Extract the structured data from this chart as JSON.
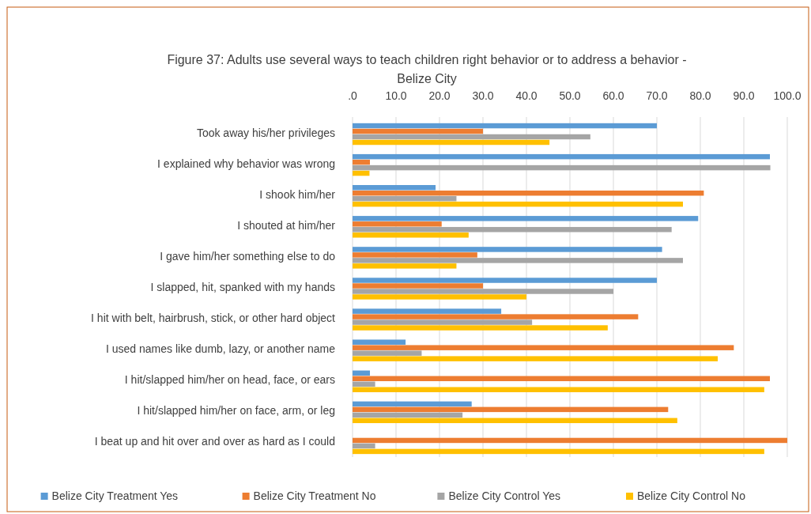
{
  "chart_data": {
    "type": "bar",
    "orientation": "horizontal",
    "title": "Figure 37: Adults use several ways to teach children right behavior or to address a behavior - Belize City",
    "categories": [
      "Took away his/her privileges",
      "I explained why behavior was wrong",
      "I shook him/her",
      "I shouted at him/her",
      "I gave him/her something else to do",
      "I slapped, hit, spanked with my hands",
      "I hit with belt, hairbrush, stick, or other hard object",
      "I used names like dumb, lazy, or another name",
      "I hit/slapped him/her on head, face, or ears",
      "I hit/slapped him/her on face, arm, or leg",
      "I beat up and hit over and over as hard as I could"
    ],
    "series": [
      {
        "name": "Belize City Treatment Yes",
        "color": "#5b9bd5",
        "values": [
          70,
          96,
          19.1,
          79.5,
          71.2,
          70,
          34.2,
          12.2,
          4,
          27.4,
          0
        ]
      },
      {
        "name": "Belize City Treatment No",
        "color": "#ed7d31",
        "values": [
          30,
          4,
          80.8,
          20.5,
          28.7,
          30,
          65.7,
          87.7,
          96,
          72.6,
          100
        ]
      },
      {
        "name": "Belize City Control Yes",
        "color": "#a5a5a5",
        "values": [
          54.7,
          96.1,
          23.9,
          73.4,
          76,
          60,
          41.3,
          15.9,
          5.2,
          25.3,
          5.2
        ]
      },
      {
        "name": "Belize City Control No",
        "color": "#ffc000",
        "values": [
          45.3,
          3.9,
          76,
          26.7,
          23.9,
          40,
          58.7,
          84,
          94.7,
          74.7,
          94.7
        ]
      }
    ],
    "xlim": [
      0,
      100
    ],
    "xticks": [
      {
        "value": 0,
        "label": ".0"
      },
      {
        "value": 10,
        "label": "10.0"
      },
      {
        "value": 20,
        "label": "20.0"
      },
      {
        "value": 30,
        "label": "30.0"
      },
      {
        "value": 40,
        "label": "40.0"
      },
      {
        "value": 50,
        "label": "50.0"
      },
      {
        "value": 60,
        "label": "60.0"
      },
      {
        "value": 70,
        "label": "70.0"
      },
      {
        "value": 80,
        "label": "80.0"
      },
      {
        "value": 90,
        "label": "90.0"
      },
      {
        "value": 100,
        "label": "100.0"
      }
    ],
    "grid": "x",
    "legend": "bottom"
  }
}
